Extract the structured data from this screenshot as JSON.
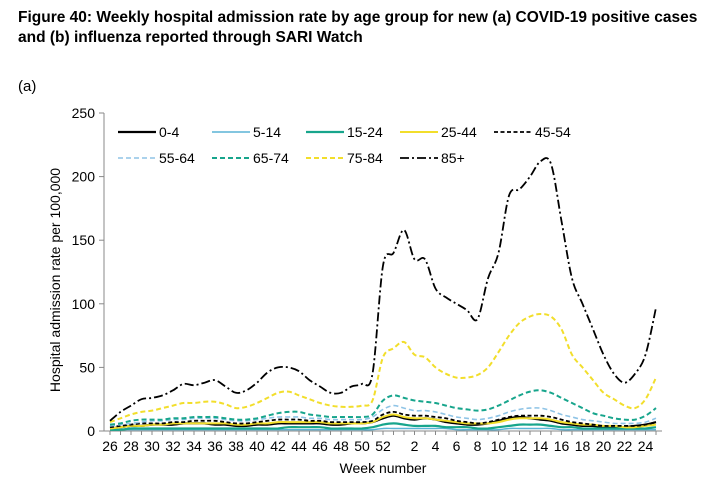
{
  "figure": {
    "title": "Figure 40: Weekly hospital admission rate by age group for new (a) COVID-19 positive cases and (b) influenza reported through SARI Watch",
    "panel_label": "(a)"
  },
  "chart_data": {
    "type": "line",
    "xlabel": "Week number",
    "ylabel": "Hospital admission rate per 100,000",
    "ylim": [
      0,
      250
    ],
    "yticks": [
      0,
      50,
      100,
      150,
      200,
      250
    ],
    "grid": false,
    "legend_position": "top",
    "x": [
      "26",
      "27",
      "28",
      "29",
      "30",
      "31",
      "32",
      "33",
      "34",
      "35",
      "36",
      "37",
      "38",
      "39",
      "40",
      "41",
      "42",
      "43",
      "44",
      "45",
      "46",
      "47",
      "48",
      "49",
      "50",
      "51",
      "52",
      "53",
      "1",
      "2",
      "3",
      "4",
      "5",
      "6",
      "7",
      "8",
      "9",
      "10",
      "11",
      "12",
      "13",
      "14",
      "15",
      "16",
      "17",
      "18",
      "19",
      "20",
      "21",
      "22",
      "23",
      "24",
      "25"
    ],
    "x_tick_labels": [
      "26",
      "28",
      "30",
      "32",
      "34",
      "36",
      "38",
      "40",
      "42",
      "44",
      "46",
      "48",
      "50",
      "52",
      "2",
      "4",
      "6",
      "8",
      "10",
      "12",
      "14",
      "16",
      "18",
      "20",
      "22",
      "24"
    ],
    "series": [
      {
        "name": "0-4",
        "color": "#000000",
        "dash": "solid",
        "width": 2.2,
        "values": [
          2,
          3,
          4,
          4,
          5,
          5,
          5,
          6,
          6,
          6,
          5,
          5,
          4,
          4,
          5,
          5,
          6,
          6,
          6,
          6,
          6,
          5,
          5,
          6,
          6,
          7,
          10,
          12,
          10,
          9,
          10,
          9,
          7,
          6,
          5,
          5,
          6,
          8,
          10,
          11,
          10,
          9,
          8,
          6,
          5,
          4,
          4,
          3,
          3,
          3,
          4,
          5,
          7
        ]
      },
      {
        "name": "5-14",
        "color": "#5ab4d6",
        "dash": "solid",
        "width": 1.4,
        "values": [
          1,
          1,
          1,
          1,
          1,
          1,
          1,
          1,
          1,
          1,
          1,
          1,
          1,
          1,
          1,
          1,
          1,
          1,
          1,
          1,
          1,
          1,
          1,
          1,
          1,
          1,
          2,
          2,
          2,
          2,
          2,
          2,
          2,
          1,
          1,
          1,
          1,
          1,
          2,
          2,
          2,
          2,
          2,
          1,
          1,
          1,
          1,
          1,
          1,
          1,
          1,
          1,
          1
        ]
      },
      {
        "name": "15-24",
        "color": "#17a58c",
        "dash": "solid",
        "width": 2.2,
        "values": [
          1,
          1,
          2,
          2,
          2,
          2,
          2,
          2,
          2,
          2,
          2,
          2,
          2,
          2,
          2,
          2,
          2,
          3,
          3,
          3,
          3,
          2,
          2,
          2,
          2,
          3,
          5,
          6,
          5,
          4,
          4,
          4,
          3,
          3,
          3,
          2,
          2,
          3,
          4,
          5,
          5,
          5,
          4,
          3,
          3,
          2,
          2,
          2,
          2,
          2,
          2,
          2,
          3
        ]
      },
      {
        "name": "25-44",
        "color": "#f2de2b",
        "dash": "solid",
        "width": 2.0,
        "values": [
          2,
          3,
          4,
          4,
          5,
          5,
          6,
          6,
          6,
          6,
          6,
          6,
          5,
          5,
          6,
          6,
          7,
          7,
          7,
          7,
          7,
          6,
          6,
          6,
          6,
          7,
          11,
          13,
          11,
          10,
          10,
          9,
          8,
          7,
          6,
          6,
          6,
          7,
          9,
          10,
          10,
          10,
          9,
          7,
          6,
          5,
          5,
          4,
          4,
          3,
          3,
          4,
          5
        ]
      },
      {
        "name": "45-54",
        "color": "#000000",
        "dash": "4,2.5",
        "width": 1.8,
        "values": [
          3,
          4,
          5,
          6,
          6,
          6,
          7,
          7,
          8,
          8,
          8,
          7,
          6,
          6,
          7,
          8,
          9,
          9,
          9,
          8,
          8,
          7,
          7,
          7,
          7,
          8,
          13,
          15,
          13,
          12,
          12,
          11,
          10,
          8,
          7,
          6,
          7,
          9,
          11,
          12,
          12,
          12,
          11,
          9,
          7,
          6,
          5,
          4,
          4,
          4,
          4,
          5,
          7
        ]
      },
      {
        "name": "55-64",
        "color": "#8fc4e6",
        "dash": "5,3",
        "width": 1.6,
        "values": [
          4,
          5,
          6,
          7,
          8,
          8,
          9,
          9,
          10,
          10,
          10,
          9,
          8,
          8,
          9,
          10,
          11,
          11,
          11,
          10,
          10,
          9,
          9,
          9,
          9,
          11,
          17,
          20,
          18,
          16,
          16,
          15,
          13,
          11,
          10,
          9,
          10,
          12,
          15,
          17,
          18,
          18,
          16,
          13,
          11,
          9,
          8,
          7,
          6,
          6,
          6,
          7,
          10
        ]
      },
      {
        "name": "65-74",
        "color": "#17a58c",
        "dash": "5,3",
        "width": 2.0,
        "values": [
          5,
          6,
          8,
          9,
          9,
          9,
          10,
          10,
          11,
          11,
          11,
          10,
          9,
          9,
          10,
          12,
          14,
          15,
          15,
          13,
          12,
          11,
          11,
          11,
          11,
          13,
          24,
          28,
          26,
          24,
          23,
          22,
          20,
          18,
          17,
          16,
          17,
          20,
          24,
          28,
          31,
          32,
          30,
          26,
          22,
          18,
          14,
          12,
          10,
          9,
          9,
          12,
          18
        ]
      },
      {
        "name": "75-84",
        "color": "#f2de2b",
        "dash": "5,3",
        "width": 2.0,
        "values": [
          7,
          10,
          13,
          15,
          16,
          18,
          20,
          22,
          22,
          23,
          23,
          21,
          18,
          19,
          22,
          26,
          30,
          31,
          28,
          25,
          22,
          20,
          19,
          19,
          20,
          24,
          58,
          65,
          70,
          60,
          58,
          50,
          45,
          42,
          42,
          44,
          50,
          62,
          75,
          85,
          90,
          92,
          90,
          80,
          60,
          50,
          40,
          30,
          25,
          20,
          18,
          25,
          42
        ]
      },
      {
        "name": "85+",
        "color": "#000000",
        "dash": "9,3,2,3",
        "width": 1.8,
        "values": [
          8,
          15,
          20,
          25,
          26,
          28,
          32,
          37,
          36,
          38,
          40,
          35,
          30,
          32,
          38,
          46,
          50,
          50,
          47,
          40,
          35,
          30,
          30,
          35,
          37,
          45,
          130,
          140,
          158,
          135,
          135,
          112,
          105,
          100,
          95,
          88,
          120,
          140,
          185,
          190,
          200,
          212,
          210,
          165,
          120,
          100,
          80,
          60,
          45,
          38,
          45,
          60,
          97
        ]
      }
    ]
  }
}
